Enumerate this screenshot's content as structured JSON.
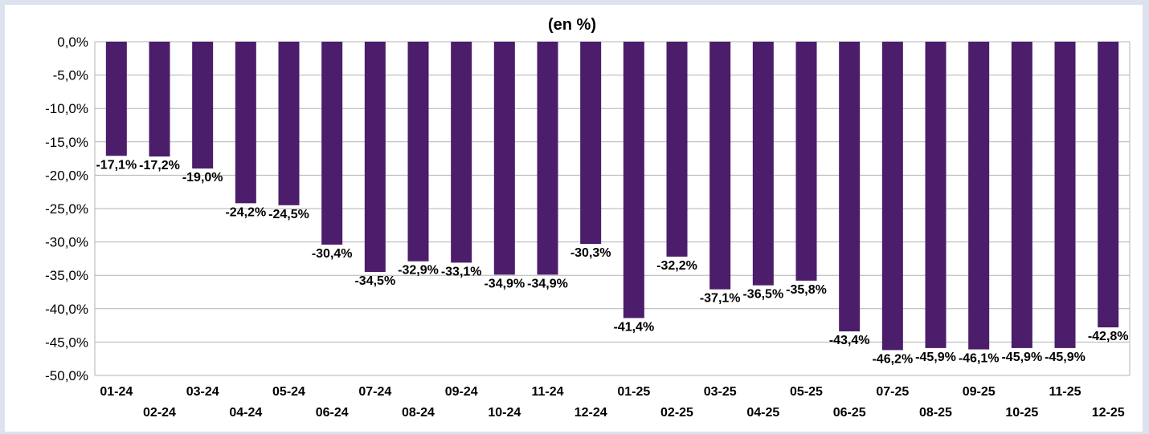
{
  "chart_data": {
    "type": "bar",
    "title": "(en %)",
    "xlabel": "",
    "ylabel": "",
    "ylim": [
      -50,
      0
    ],
    "ytick_step": 5,
    "y_ticks": [
      "0,0%",
      "-5,0%",
      "-10,0%",
      "-15,0%",
      "-20,0%",
      "-25,0%",
      "-30,0%",
      "-35,0%",
      "-40,0%",
      "-45,0%",
      "-50,0%"
    ],
    "grid": true,
    "legend": "none",
    "bar_color": "#4b1d6b",
    "categories": [
      "01-24",
      "02-24",
      "03-24",
      "04-24",
      "05-24",
      "06-24",
      "07-24",
      "08-24",
      "09-24",
      "10-24",
      "11-24",
      "12-24",
      "01-25",
      "02-25",
      "03-25",
      "04-25",
      "05-25",
      "06-25",
      "07-25",
      "08-25",
      "09-25",
      "10-25",
      "11-25",
      "12-25"
    ],
    "values": [
      -17.1,
      -17.2,
      -19.0,
      -24.2,
      -24.5,
      -30.4,
      -34.5,
      -32.9,
      -33.1,
      -34.9,
      -34.9,
      -30.3,
      -41.4,
      -32.2,
      -37.1,
      -36.5,
      -35.8,
      -43.4,
      -46.2,
      -45.9,
      -46.1,
      -45.9,
      -45.9,
      -42.8
    ],
    "data_labels": [
      "-17,1%",
      "-17,2%",
      "-19,0%",
      "-24,2%",
      "-24,5%",
      "-30,4%",
      "-34,5%",
      "-32,9%",
      "-33,1%",
      "-34,9%",
      "-34,9%",
      "-30,3%",
      "-41,4%",
      "-32,2%",
      "-37,1%",
      "-36,5%",
      "-35,8%",
      "-43,4%",
      "-46,2%",
      "-45,9%",
      "-46,1%",
      "-45,9%",
      "-45,9%",
      "-42,8%"
    ]
  }
}
